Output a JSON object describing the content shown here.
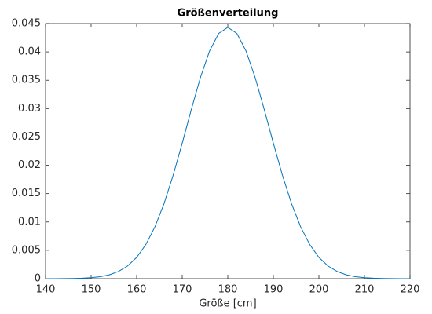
{
  "chart_data": {
    "type": "line",
    "title": "Größenverteilung",
    "x_label": "Größe [cm]",
    "x": [
      140,
      142,
      144,
      146,
      148,
      150,
      152,
      154,
      156,
      158,
      160,
      162,
      164,
      166,
      168,
      170,
      172,
      174,
      176,
      178,
      180,
      182,
      184,
      186,
      188,
      190,
      192,
      194,
      196,
      198,
      200,
      202,
      204,
      206,
      208,
      210,
      212,
      214,
      216,
      218,
      220
    ],
    "values": [
      2e-06,
      5e-06,
      1.5e-05,
      4e-05,
      8e-05,
      0.00017,
      0.00035,
      0.00068,
      0.00127,
      0.00223,
      0.00375,
      0.006,
      0.00913,
      0.01322,
      0.01822,
      0.02391,
      0.02986,
      0.0355,
      0.04016,
      0.04325,
      0.04433,
      0.04325,
      0.04016,
      0.0355,
      0.02986,
      0.02391,
      0.01822,
      0.01322,
      0.00913,
      0.006,
      0.00375,
      0.00223,
      0.00127,
      0.00068,
      0.00035,
      0.00017,
      8e-05,
      4e-05,
      1.5e-05,
      5e-06,
      2e-06
    ],
    "color": "#0072bd",
    "xlim": [
      140,
      220
    ],
    "xticks": [
      140,
      150,
      160,
      170,
      180,
      190,
      200,
      210,
      220
    ],
    "ylim": [
      0,
      0.045
    ],
    "yticks": [
      0,
      0.005,
      0.01,
      0.015,
      0.02,
      0.025,
      0.03,
      0.035,
      0.04,
      0.045
    ]
  }
}
